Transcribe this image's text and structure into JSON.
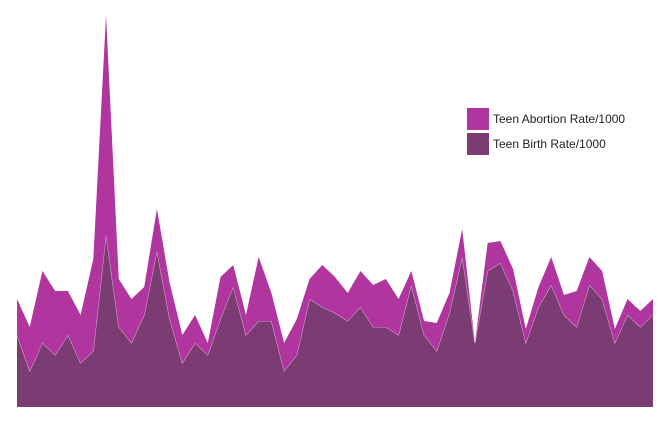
{
  "chart_data": {
    "type": "stacked-area",
    "categories": [
      null,
      null,
      null,
      null,
      null,
      null,
      null,
      null,
      null,
      null,
      null,
      null,
      null,
      null,
      null,
      null,
      null,
      null,
      null,
      null,
      null,
      null,
      null,
      null,
      null,
      null,
      null,
      null,
      null,
      null,
      null,
      null,
      null,
      null,
      null,
      null,
      null,
      null,
      null,
      null,
      null,
      null,
      null,
      null,
      null,
      null,
      null,
      null,
      null,
      null,
      null
    ],
    "series": [
      {
        "name": "Teen Birth Rate/1000",
        "color": "#7b3b73",
        "values": [
          18,
          9,
          16,
          13,
          18,
          11,
          14,
          43,
          20,
          16,
          23,
          39,
          22,
          11,
          16,
          13,
          22,
          30,
          18,
          21.5,
          21.5,
          9,
          13,
          27,
          25,
          23.5,
          21.5,
          25,
          20,
          20,
          18,
          30.5,
          18,
          14,
          23.5,
          37.5,
          16,
          34,
          36,
          29,
          16,
          25,
          30.5,
          23,
          20,
          30.5,
          27,
          16,
          23,
          20,
          23
        ]
      },
      {
        "name": "Teen Abortion Rate/1000",
        "color": "#b0359e",
        "values": [
          9,
          11,
          18,
          16,
          11,
          12,
          23,
          55,
          12,
          11,
          7,
          10.5,
          9,
          7,
          7,
          3,
          10.5,
          5.5,
          5,
          16,
          7,
          7,
          9,
          5,
          10.5,
          9,
          7,
          9,
          10.5,
          12,
          9,
          3.5,
          3.5,
          7,
          5,
          7,
          0,
          7,
          5.5,
          5.5,
          3.5,
          5,
          7,
          5,
          9,
          7,
          7,
          3.5,
          4,
          4,
          4
        ]
      }
    ],
    "ylim": [
      0,
      100
    ],
    "legend": "right"
  }
}
